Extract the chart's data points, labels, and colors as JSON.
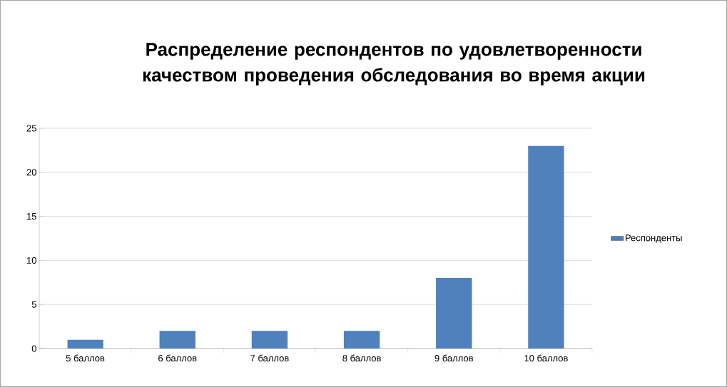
{
  "chart_data": {
    "type": "bar",
    "title": "Распределение респондентов по удовлетворенности качеством проведения обследования во время акции",
    "categories": [
      "5 баллов",
      "6 баллов",
      "7 баллов",
      "8 баллов",
      "9 баллов",
      "10 баллов"
    ],
    "series": [
      {
        "name": "Респонденты",
        "color": "#4f81bd",
        "values": [
          1,
          2,
          2,
          2,
          8,
          23
        ]
      }
    ],
    "ylim": [
      0,
      25
    ],
    "yticks": [
      0,
      5,
      10,
      15,
      20,
      25
    ],
    "grid": "y",
    "legend": "right"
  }
}
